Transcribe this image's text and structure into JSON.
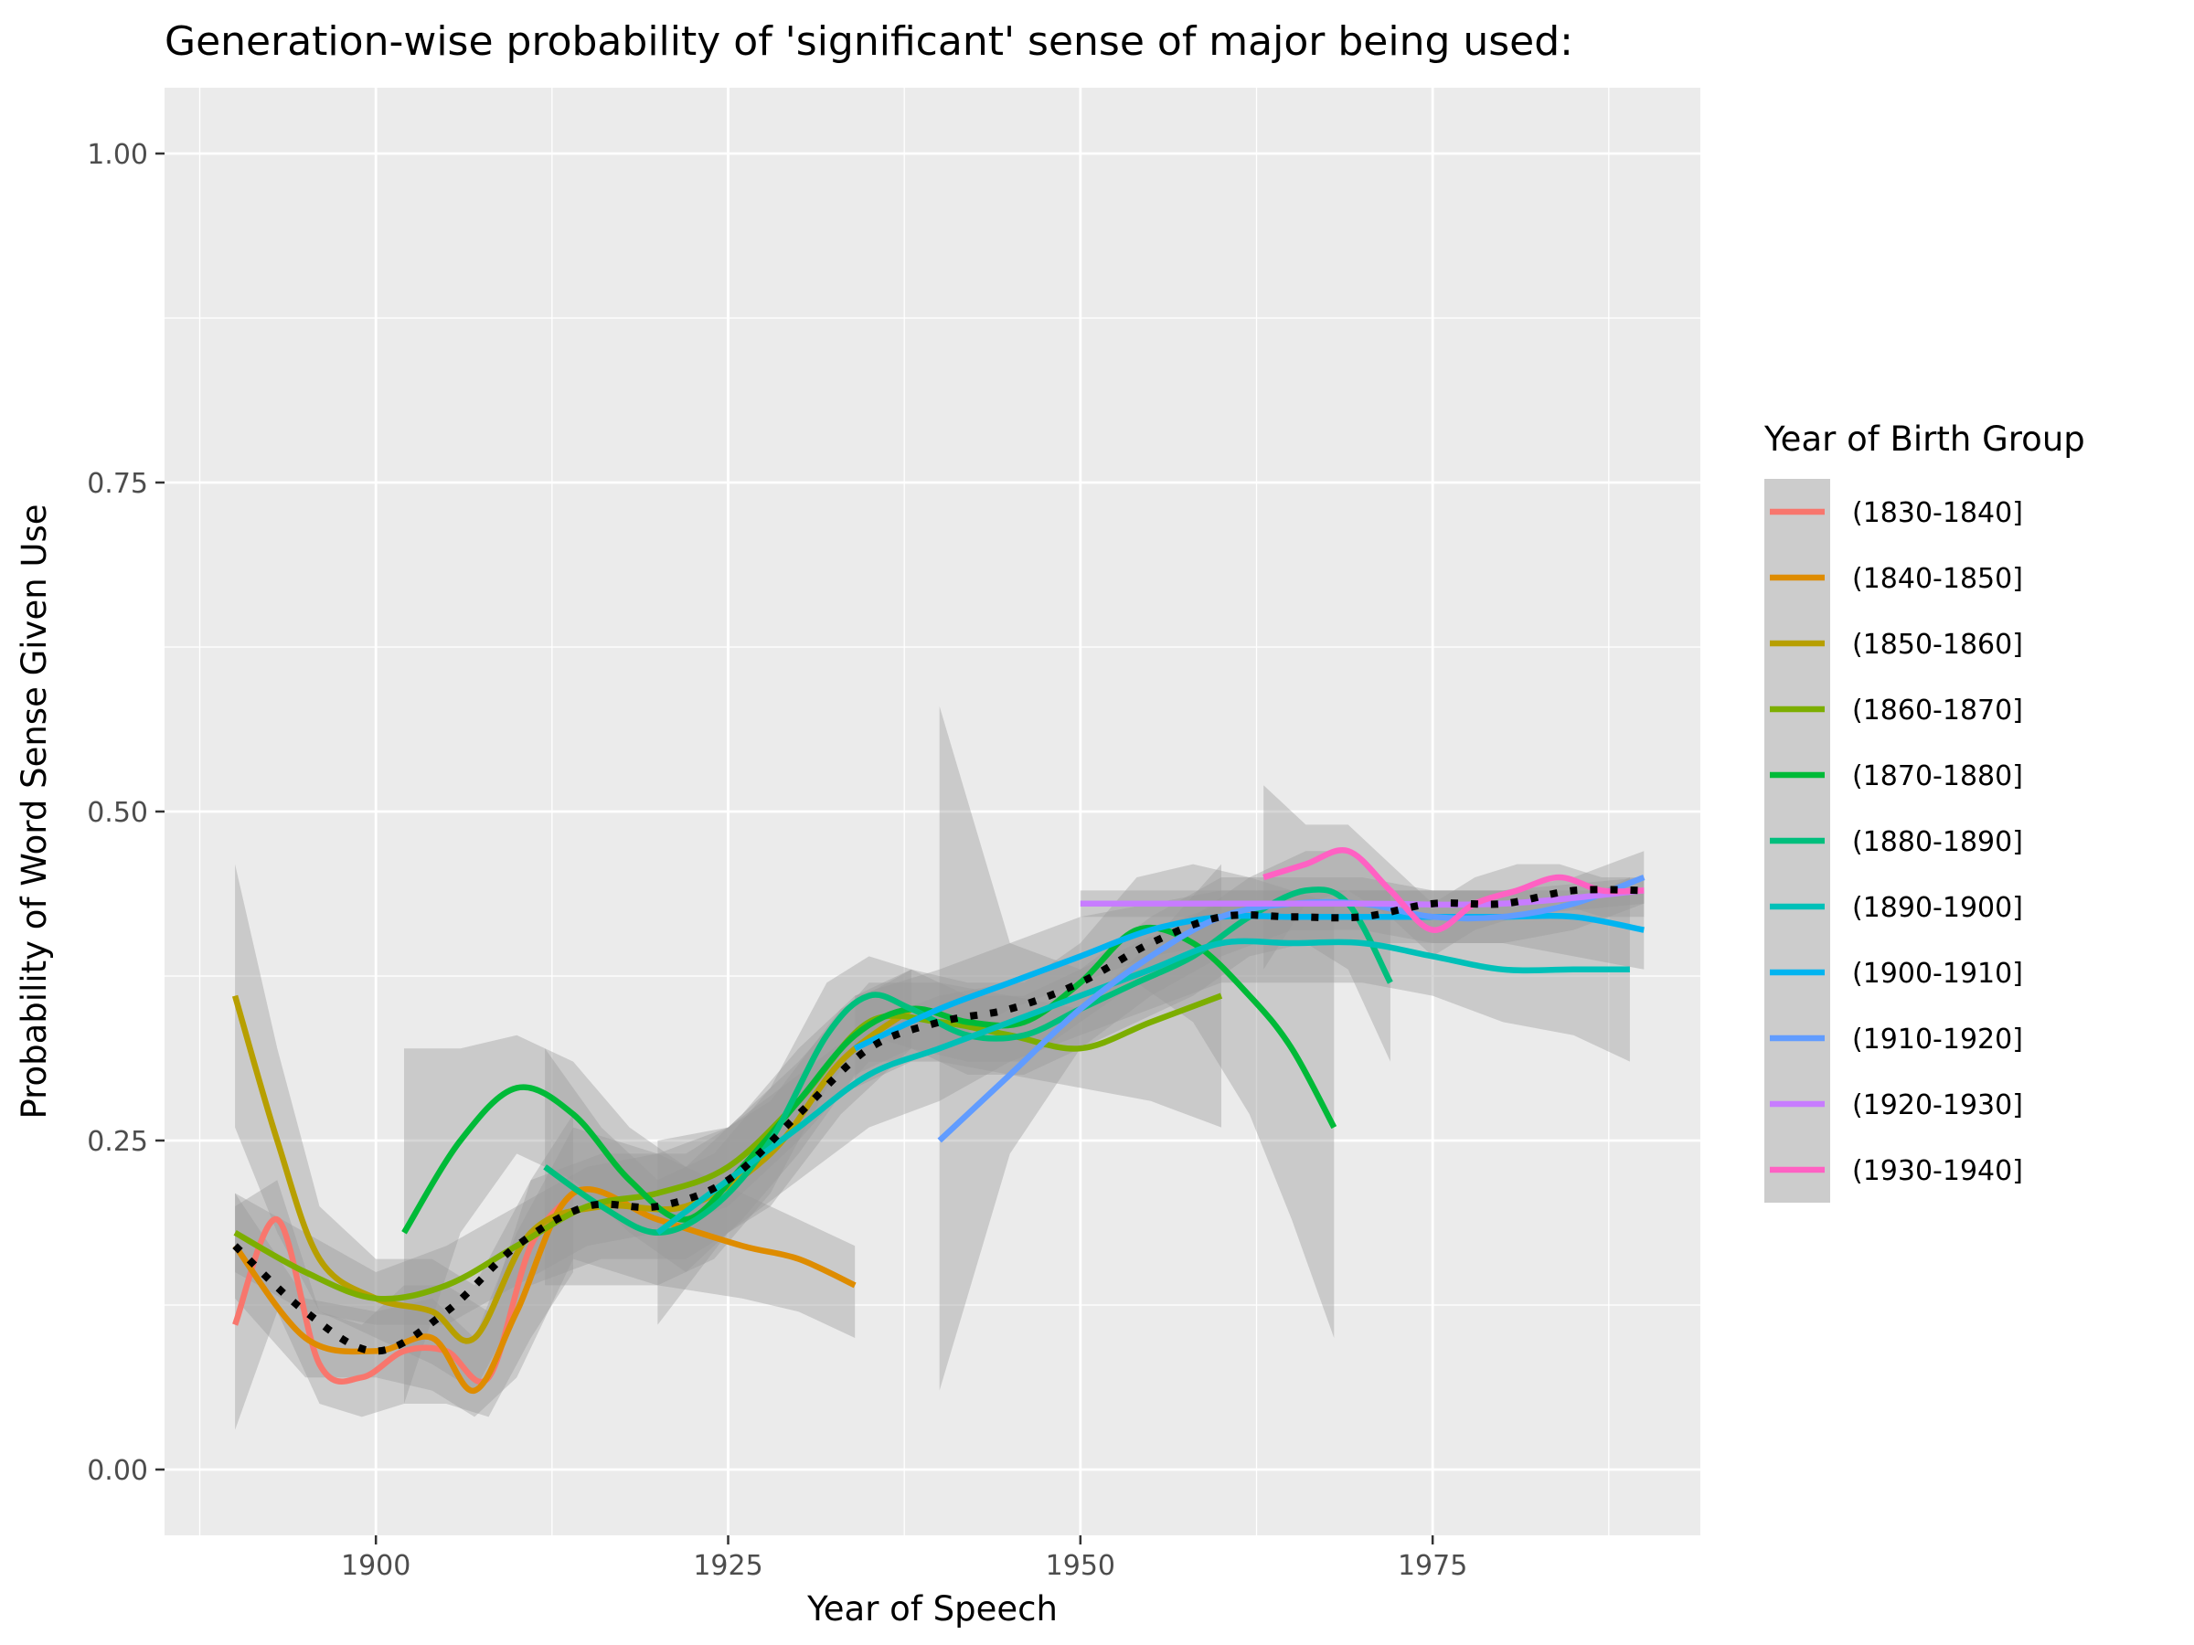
{
  "chart_data": {
    "type": "line",
    "title": "Generation-wise probability of 'significant' sense of major being used:",
    "xlabel": "Year of Speech",
    "ylabel": "Probability of Word Sense Given Use",
    "xlim": [
      1885,
      1994
    ],
    "ylim": [
      -0.05,
      1.05
    ],
    "x_ticks": [
      1900,
      1925,
      1950,
      1975
    ],
    "x_tick_labels": [
      "1900",
      "1925",
      "1950",
      "1975"
    ],
    "y_ticks": [
      0,
      0.25,
      0.5,
      0.75,
      1.0
    ],
    "y_tick_labels": [
      "0.00",
      "0.25",
      "0.50",
      "0.75",
      "1.00"
    ],
    "grid": true,
    "legend": {
      "title": "Year of Birth Group",
      "position": "right"
    },
    "series": [
      {
        "name": "(1830-1840]",
        "color": "#F8766D",
        "x": [
          1890,
          1893,
          1896,
          1899,
          1902,
          1905,
          1908,
          1911,
          1914
        ],
        "y": [
          0.11,
          0.19,
          0.08,
          0.07,
          0.09,
          0.09,
          0.07,
          0.17,
          0.21
        ],
        "band_upper": [
          0.2,
          0.22,
          0.12,
          0.11,
          0.14,
          0.14,
          0.12,
          0.22,
          0.27
        ],
        "band_lower": [
          0.03,
          0.12,
          0.05,
          0.04,
          0.05,
          0.05,
          0.04,
          0.1,
          0.15
        ]
      },
      {
        "name": "(1840-1850]",
        "color": "#DE8C00",
        "x": [
          1890,
          1895,
          1900,
          1904,
          1907,
          1910,
          1914,
          1920,
          1926,
          1930,
          1934
        ],
        "y": [
          0.17,
          0.1,
          0.09,
          0.1,
          0.06,
          0.12,
          0.21,
          0.19,
          0.17,
          0.16,
          0.14
        ],
        "band_upper": [
          0.21,
          0.13,
          0.12,
          0.13,
          0.1,
          0.18,
          0.26,
          0.24,
          0.21,
          0.19,
          0.17
        ],
        "band_lower": [
          0.13,
          0.07,
          0.07,
          0.06,
          0.04,
          0.07,
          0.16,
          0.14,
          0.13,
          0.12,
          0.1
        ]
      },
      {
        "name": "(1850-1860]",
        "color": "#B79F00",
        "x": [
          1890,
          1893,
          1896,
          1900,
          1904,
          1907,
          1911,
          1916,
          1922,
          1928,
          1933,
          1938
        ],
        "y": [
          0.36,
          0.25,
          0.16,
          0.13,
          0.12,
          0.1,
          0.18,
          0.2,
          0.2,
          0.24,
          0.31,
          0.35
        ],
        "band_upper": [
          0.46,
          0.32,
          0.2,
          0.16,
          0.16,
          0.14,
          0.22,
          0.24,
          0.24,
          0.28,
          0.35,
          0.38
        ],
        "band_lower": [
          0.26,
          0.18,
          0.12,
          0.1,
          0.08,
          0.06,
          0.14,
          0.16,
          0.16,
          0.2,
          0.27,
          0.32
        ]
      },
      {
        "name": "(1860-1870]",
        "color": "#7CAE00",
        "x": [
          1890,
          1895,
          1900,
          1905,
          1910,
          1915,
          1920,
          1925,
          1930,
          1935,
          1940,
          1945,
          1950,
          1955,
          1960
        ],
        "y": [
          0.18,
          0.15,
          0.13,
          0.14,
          0.17,
          0.2,
          0.21,
          0.23,
          0.28,
          0.34,
          0.34,
          0.33,
          0.32,
          0.34,
          0.36
        ],
        "band_upper": [
          0.21,
          0.18,
          0.15,
          0.17,
          0.2,
          0.23,
          0.24,
          0.26,
          0.31,
          0.37,
          0.37,
          0.36,
          0.35,
          0.4,
          0.46
        ],
        "band_lower": [
          0.15,
          0.12,
          0.11,
          0.11,
          0.14,
          0.17,
          0.18,
          0.2,
          0.25,
          0.31,
          0.31,
          0.3,
          0.29,
          0.28,
          0.26
        ]
      },
      {
        "name": "(1870-1880]",
        "color": "#00BA38",
        "x": [
          1902,
          1906,
          1910,
          1914,
          1918,
          1922,
          1926,
          1930,
          1934,
          1938,
          1942,
          1946,
          1950,
          1954,
          1958,
          1962,
          1965,
          1968
        ],
        "y": [
          0.18,
          0.25,
          0.29,
          0.27,
          0.22,
          0.19,
          0.23,
          0.28,
          0.33,
          0.35,
          0.34,
          0.34,
          0.37,
          0.41,
          0.4,
          0.36,
          0.32,
          0.26
        ],
        "band_upper": [
          0.32,
          0.32,
          0.33,
          0.31,
          0.26,
          0.23,
          0.27,
          0.32,
          0.36,
          0.38,
          0.37,
          0.37,
          0.4,
          0.45,
          0.46,
          0.45,
          0.44,
          0.43
        ],
        "band_lower": [
          0.05,
          0.18,
          0.24,
          0.22,
          0.18,
          0.15,
          0.19,
          0.24,
          0.3,
          0.32,
          0.31,
          0.31,
          0.34,
          0.37,
          0.34,
          0.27,
          0.19,
          0.1
        ]
      },
      {
        "name": "(1880-1890]",
        "color": "#00BF7D",
        "x": [
          1912,
          1916,
          1920,
          1924,
          1928,
          1932,
          1935,
          1938,
          1942,
          1946,
          1950,
          1954,
          1958,
          1962,
          1966,
          1969,
          1972
        ],
        "y": [
          0.23,
          0.2,
          0.18,
          0.2,
          0.25,
          0.33,
          0.36,
          0.35,
          0.33,
          0.33,
          0.35,
          0.37,
          0.39,
          0.42,
          0.44,
          0.43,
          0.37
        ],
        "band_upper": [
          0.32,
          0.26,
          0.22,
          0.24,
          0.29,
          0.37,
          0.39,
          0.38,
          0.36,
          0.36,
          0.38,
          0.4,
          0.42,
          0.45,
          0.47,
          0.47,
          0.44
        ],
        "band_lower": [
          0.14,
          0.14,
          0.14,
          0.16,
          0.21,
          0.29,
          0.33,
          0.32,
          0.3,
          0.3,
          0.32,
          0.34,
          0.36,
          0.39,
          0.4,
          0.38,
          0.31
        ]
      },
      {
        "name": "(1890-1900]",
        "color": "#00C0B8",
        "x": [
          1920,
          1925,
          1930,
          1935,
          1940,
          1945,
          1950,
          1955,
          1960,
          1965,
          1970,
          1975,
          1980,
          1985,
          1989
        ],
        "y": [
          0.18,
          0.22,
          0.26,
          0.3,
          0.32,
          0.34,
          0.36,
          0.38,
          0.4,
          0.4,
          0.4,
          0.39,
          0.38,
          0.38,
          0.38
        ],
        "band_upper": [
          0.25,
          0.26,
          0.3,
          0.34,
          0.36,
          0.37,
          0.39,
          0.41,
          0.43,
          0.43,
          0.43,
          0.42,
          0.42,
          0.43,
          0.45
        ],
        "band_lower": [
          0.11,
          0.18,
          0.22,
          0.26,
          0.28,
          0.31,
          0.33,
          0.35,
          0.37,
          0.37,
          0.37,
          0.36,
          0.34,
          0.33,
          0.31
        ]
      },
      {
        "name": "(1900-1910]",
        "color": "#00B4F0",
        "x": [
          1934,
          1940,
          1945,
          1950,
          1955,
          1960,
          1965,
          1970,
          1975,
          1980,
          1985,
          1990
        ],
        "y": [
          0.32,
          0.35,
          0.37,
          0.39,
          0.41,
          0.42,
          0.42,
          0.42,
          0.42,
          0.42,
          0.42,
          0.41
        ],
        "band_upper": [
          0.36,
          0.38,
          0.4,
          0.42,
          0.43,
          0.44,
          0.44,
          0.44,
          0.44,
          0.44,
          0.44,
          0.44
        ],
        "band_lower": [
          0.29,
          0.32,
          0.35,
          0.37,
          0.39,
          0.4,
          0.4,
          0.4,
          0.4,
          0.4,
          0.39,
          0.38
        ]
      },
      {
        "name": "(1910-1920]",
        "color": "#619CFF",
        "x": [
          1940,
          1945,
          1950,
          1955,
          1960,
          1965,
          1970,
          1975,
          1980,
          1985,
          1990
        ],
        "y": [
          0.25,
          0.3,
          0.35,
          0.39,
          0.42,
          0.43,
          0.43,
          0.42,
          0.42,
          0.43,
          0.45
        ],
        "band_upper": [
          0.58,
          0.4,
          0.38,
          0.42,
          0.45,
          0.45,
          0.45,
          0.44,
          0.44,
          0.45,
          0.47
        ],
        "band_lower": [
          0.06,
          0.24,
          0.32,
          0.36,
          0.39,
          0.41,
          0.41,
          0.4,
          0.4,
          0.41,
          0.43
        ]
      },
      {
        "name": "(1920-1930]",
        "color": "#C77CFF",
        "x": [
          1950,
          1960,
          1970,
          1980,
          1990
        ],
        "y": [
          0.43,
          0.43,
          0.43,
          0.43,
          0.44
        ],
        "band_upper": [
          0.44,
          0.44,
          0.44,
          0.44,
          0.45
        ],
        "band_lower": [
          0.42,
          0.42,
          0.42,
          0.42,
          0.43
        ]
      },
      {
        "name": "(1930-1940]",
        "color": "#FF61C3",
        "x": [
          1963,
          1966,
          1969,
          1972,
          1975,
          1978,
          1981,
          1984,
          1987,
          1990
        ],
        "y": [
          0.45,
          0.46,
          0.47,
          0.44,
          0.41,
          0.43,
          0.44,
          0.45,
          0.44,
          0.44
        ],
        "band_upper": [
          0.52,
          0.49,
          0.49,
          0.46,
          0.43,
          0.45,
          0.46,
          0.46,
          0.45,
          0.45
        ],
        "band_lower": [
          0.38,
          0.43,
          0.44,
          0.42,
          0.39,
          0.41,
          0.42,
          0.43,
          0.42,
          0.42
        ]
      }
    ],
    "overall_trend": {
      "color": "#000000",
      "x": [
        1890,
        1895,
        1900,
        1905,
        1910,
        1915,
        1920,
        1925,
        1930,
        1935,
        1940,
        1945,
        1950,
        1955,
        1960,
        1965,
        1970,
        1975,
        1980,
        1985,
        1990
      ],
      "y": [
        0.17,
        0.12,
        0.09,
        0.12,
        0.17,
        0.2,
        0.2,
        0.22,
        0.27,
        0.32,
        0.34,
        0.35,
        0.37,
        0.4,
        0.42,
        0.42,
        0.42,
        0.43,
        0.43,
        0.44,
        0.44
      ]
    }
  }
}
